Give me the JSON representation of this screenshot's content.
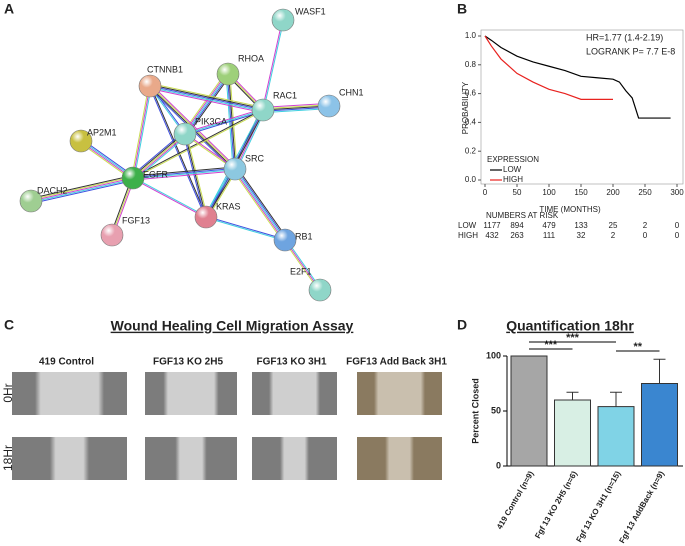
{
  "panel_labels": [
    "A",
    "B",
    "C",
    "D"
  ],
  "network": {
    "nodes": [
      "WASF1",
      "RHOA",
      "CTNNB1",
      "RAC1",
      "CHN1",
      "AP2M1",
      "PIK3CA",
      "EGFR",
      "SRC",
      "DACH2",
      "KRAS",
      "FGF13",
      "RB1",
      "E2F1"
    ]
  },
  "survival": {
    "type": "line",
    "stats": [
      "HR=1.77 (1.4-2.19)",
      "LOGRANK P= 7.7 E-8"
    ],
    "ylabel": "PROBABILITY",
    "xlabel": "TIME (MONTHS)",
    "xlim": [
      0,
      300
    ],
    "xticks": [
      0,
      50,
      100,
      150,
      200,
      250,
      300
    ],
    "ylim": [
      0,
      1
    ],
    "yticks": [
      {
        "value": 0,
        "label": "0.0"
      },
      {
        "value": 0.2,
        "label": "0.2"
      },
      {
        "value": 0.4,
        "label": "0.4"
      },
      {
        "value": 0.6,
        "label": "0.6"
      },
      {
        "value": 0.8,
        "label": "0.8"
      },
      {
        "value": 1,
        "label": "1.0"
      }
    ],
    "legend_title": "EXPRESSION",
    "series": [
      {
        "name": "LOW",
        "color": "#000000",
        "x": [
          0,
          10,
          25,
          50,
          75,
          100,
          125,
          150,
          175,
          200,
          210,
          220,
          230,
          240,
          260,
          290
        ],
        "values": [
          1.0,
          0.97,
          0.92,
          0.86,
          0.82,
          0.79,
          0.76,
          0.72,
          0.71,
          0.7,
          0.68,
          0.62,
          0.57,
          0.43,
          0.43,
          0.43
        ]
      },
      {
        "name": "HIGH",
        "color": "#e8221f",
        "x": [
          0,
          10,
          25,
          50,
          75,
          100,
          125,
          150,
          175,
          200
        ],
        "values": [
          1.0,
          0.93,
          0.84,
          0.74,
          0.68,
          0.63,
          0.6,
          0.56,
          0.56,
          0.56
        ]
      }
    ],
    "risk_table": {
      "title": "NUMBERS AT RISK",
      "rows": [
        {
          "label": "LOW",
          "color": "#000000",
          "values": [
            1177,
            894,
            479,
            133,
            25,
            2,
            0
          ]
        },
        {
          "label": "HIGH",
          "color": "#e8221f",
          "values": [
            432,
            263,
            111,
            32,
            2,
            0,
            0
          ]
        }
      ]
    }
  },
  "wound": {
    "title": "Wound Healing Cell Migration Assay",
    "columns": [
      "419 Control",
      "FGF13 KO 2H5",
      "FGF13 KO 3H1",
      "FGF13 Add Back 3H1"
    ],
    "rows": [
      "0Hr",
      "18Hr"
    ]
  },
  "bar": {
    "type": "bar",
    "title": "Quantification 18hr",
    "ylabel": "Percent Closed",
    "categories": [
      "419 Control (n=9)",
      "Fgf 13 KO 2H5 (n=6)",
      "Fgf 13 KO 3H1 (n=15)",
      "Fgf 13 AddBack (n=9)"
    ],
    "values": [
      100,
      60,
      54,
      75
    ],
    "errors": [
      0,
      7,
      13,
      22
    ],
    "colors": [
      "#a6a6a6",
      "#d8efe4",
      "#80d3e6",
      "#3a86d0"
    ],
    "ylim": [
      0,
      100
    ],
    "yticks": [
      0,
      50,
      100
    ],
    "significance": [
      "***",
      "***",
      "**"
    ]
  }
}
